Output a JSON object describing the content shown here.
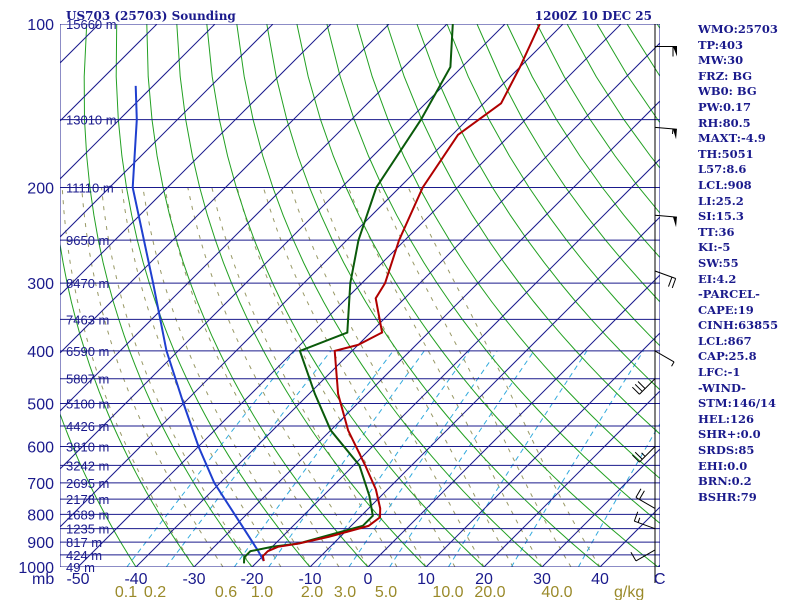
{
  "header": {
    "station": "US703 (25703) Sounding",
    "valid_time": "1200Z 10 DEC 25"
  },
  "axis_unit": {
    "pressure": "mb",
    "temperature": "C",
    "mixing_ratio": "g/kg"
  },
  "stats": [
    "WMO:25703",
    "TP:403",
    "MW:30",
    "FRZ: BG",
    "WB0: BG",
    "PW:0.17",
    "RH:80.5",
    "MAXT:-4.9",
    "TH:5051",
    "L57:8.6",
    "LCL:908",
    "LI:25.2",
    "SI:15.3",
    "TT:36",
    "KI:-5",
    "SW:55",
    "EI:4.2",
    "-PARCEL-",
    "CAPE:19",
    "CINH:63855",
    "LCL:867",
    "CAP:25.8",
    "LFC:-1",
    "-WIND-",
    "STM:146/14",
    "HEL:126",
    "SHR+:0.0",
    "SRDS:85",
    "EHI:0.0",
    "BRN:0.2",
    "BSHR:79"
  ],
  "chart_data": {
    "type": "skew-t log-p sounding",
    "title": "US703 (25703) Sounding 1200Z 10 DEC 25",
    "ylabel": "mb",
    "xlabel": "C",
    "pressure_range": [
      1000,
      100
    ],
    "temperature_range": [
      -50,
      50
    ],
    "pressure_ticks": [
      "100",
      "200",
      "300",
      "400",
      "500",
      "600",
      "700",
      "800",
      "900",
      "1000"
    ],
    "temperature_ticks": [
      "-50",
      "-40",
      "-30",
      "-20",
      "-10",
      "0",
      "10",
      "20",
      "30",
      "40"
    ],
    "mixing_ratio_ticks": [
      "0.1",
      "0.2",
      "0.6",
      "1.0",
      "2.0",
      "3.0",
      "5.0",
      "10.0",
      "20.0",
      "40.0"
    ],
    "height_levels": [
      {
        "p": 100,
        "label": "15660 m"
      },
      {
        "p": 150,
        "label": "13010 m"
      },
      {
        "p": 200,
        "label": "11110 m"
      },
      {
        "p": 250,
        "label": "9650 m"
      },
      {
        "p": 300,
        "label": "8470 m"
      },
      {
        "p": 350,
        "label": "7463 m"
      },
      {
        "p": 400,
        "label": "6590 m"
      },
      {
        "p": 450,
        "label": "5807 m"
      },
      {
        "p": 500,
        "label": "5100 m"
      },
      {
        "p": 550,
        "label": "4426 m"
      },
      {
        "p": 600,
        "label": "3810 m"
      },
      {
        "p": 650,
        "label": "3242 m"
      },
      {
        "p": 700,
        "label": "2695 m"
      },
      {
        "p": 750,
        "label": "2178 m"
      },
      {
        "p": 800,
        "label": "1689 m"
      },
      {
        "p": 850,
        "label": "1235 m"
      },
      {
        "p": 900,
        "label": "817 m"
      },
      {
        "p": 950,
        "label": "424 m"
      },
      {
        "p": 1000,
        "label": "49 m"
      }
    ],
    "temperature_profile": [
      {
        "p": 975,
        "t": -19
      },
      {
        "p": 955,
        "t": -20
      },
      {
        "p": 935,
        "t": -20
      },
      {
        "p": 918,
        "t": -19
      },
      {
        "p": 905,
        "t": -16
      },
      {
        "p": 880,
        "t": -12
      },
      {
        "p": 840,
        "t": -7
      },
      {
        "p": 810,
        "t": -6.5
      },
      {
        "p": 780,
        "t": -8
      },
      {
        "p": 720,
        "t": -12
      },
      {
        "p": 650,
        "t": -18
      },
      {
        "p": 560,
        "t": -27
      },
      {
        "p": 480,
        "t": -35
      },
      {
        "p": 400,
        "t": -43
      },
      {
        "p": 390,
        "t": -40
      },
      {
        "p": 370,
        "t": -38
      },
      {
        "p": 320,
        "t": -45
      },
      {
        "p": 300,
        "t": -46
      },
      {
        "p": 250,
        "t": -51
      },
      {
        "p": 200,
        "t": -56
      },
      {
        "p": 160,
        "t": -59
      },
      {
        "p": 140,
        "t": -57
      },
      {
        "p": 120,
        "t": -60
      },
      {
        "p": 100,
        "t": -64
      }
    ],
    "dewpoint_profile": [
      {
        "p": 985,
        "t": -22
      },
      {
        "p": 960,
        "t": -23
      },
      {
        "p": 935,
        "t": -23
      },
      {
        "p": 918,
        "t": -20
      },
      {
        "p": 905,
        "t": -16
      },
      {
        "p": 880,
        "t": -13
      },
      {
        "p": 840,
        "t": -8
      },
      {
        "p": 805,
        "t": -8
      },
      {
        "p": 740,
        "t": -12
      },
      {
        "p": 650,
        "t": -19
      },
      {
        "p": 560,
        "t": -30
      },
      {
        "p": 480,
        "t": -39
      },
      {
        "p": 400,
        "t": -49
      },
      {
        "p": 370,
        "t": -44
      },
      {
        "p": 300,
        "t": -52
      },
      {
        "p": 250,
        "t": -58
      },
      {
        "p": 200,
        "t": -64
      },
      {
        "p": 150,
        "t": -68
      },
      {
        "p": 120,
        "t": -72
      },
      {
        "p": 100,
        "t": -79
      }
    ],
    "parcel_profile": [
      {
        "p": 975,
        "t": -19
      },
      {
        "p": 930,
        "t": -22
      },
      {
        "p": 850,
        "t": -28
      },
      {
        "p": 700,
        "t": -41
      },
      {
        "p": 600,
        "t": -50
      },
      {
        "p": 500,
        "t": -60
      },
      {
        "p": 400,
        "t": -72
      },
      {
        "p": 300,
        "t": -86
      },
      {
        "p": 200,
        "t": -106
      },
      {
        "p": 150,
        "t": -117
      },
      {
        "p": 130,
        "t": -123
      }
    ],
    "wind_barbs": [
      {
        "p": 110,
        "dir": 270,
        "speed_kt": 60
      },
      {
        "p": 155,
        "dir": 275,
        "speed_kt": 55
      },
      {
        "p": 225,
        "dir": 275,
        "speed_kt": 50
      },
      {
        "p": 285,
        "dir": 290,
        "speed_kt": 20
      },
      {
        "p": 400,
        "dir": 300,
        "speed_kt": 5
      },
      {
        "p": 450,
        "dir": 45,
        "speed_kt": 30
      },
      {
        "p": 600,
        "dir": 45,
        "speed_kt": 25
      },
      {
        "p": 780,
        "dir": 120,
        "speed_kt": 20
      },
      {
        "p": 850,
        "dir": 110,
        "speed_kt": 15
      },
      {
        "p": 930,
        "dir": 60,
        "speed_kt": 10
      },
      {
        "p": 975,
        "dir": 0,
        "speed_kt": 0
      }
    ],
    "colors": {
      "isobar": "#1a1a8c",
      "isotherm": "#1a1a8c",
      "dry_adiabat": "#22a022",
      "moist_adiabat": "#999966",
      "mixing_ratio": "#33aadd",
      "temperature": "#b00000",
      "dewpoint": "#0a5a0a",
      "parcel": "#1f3fcf"
    }
  }
}
